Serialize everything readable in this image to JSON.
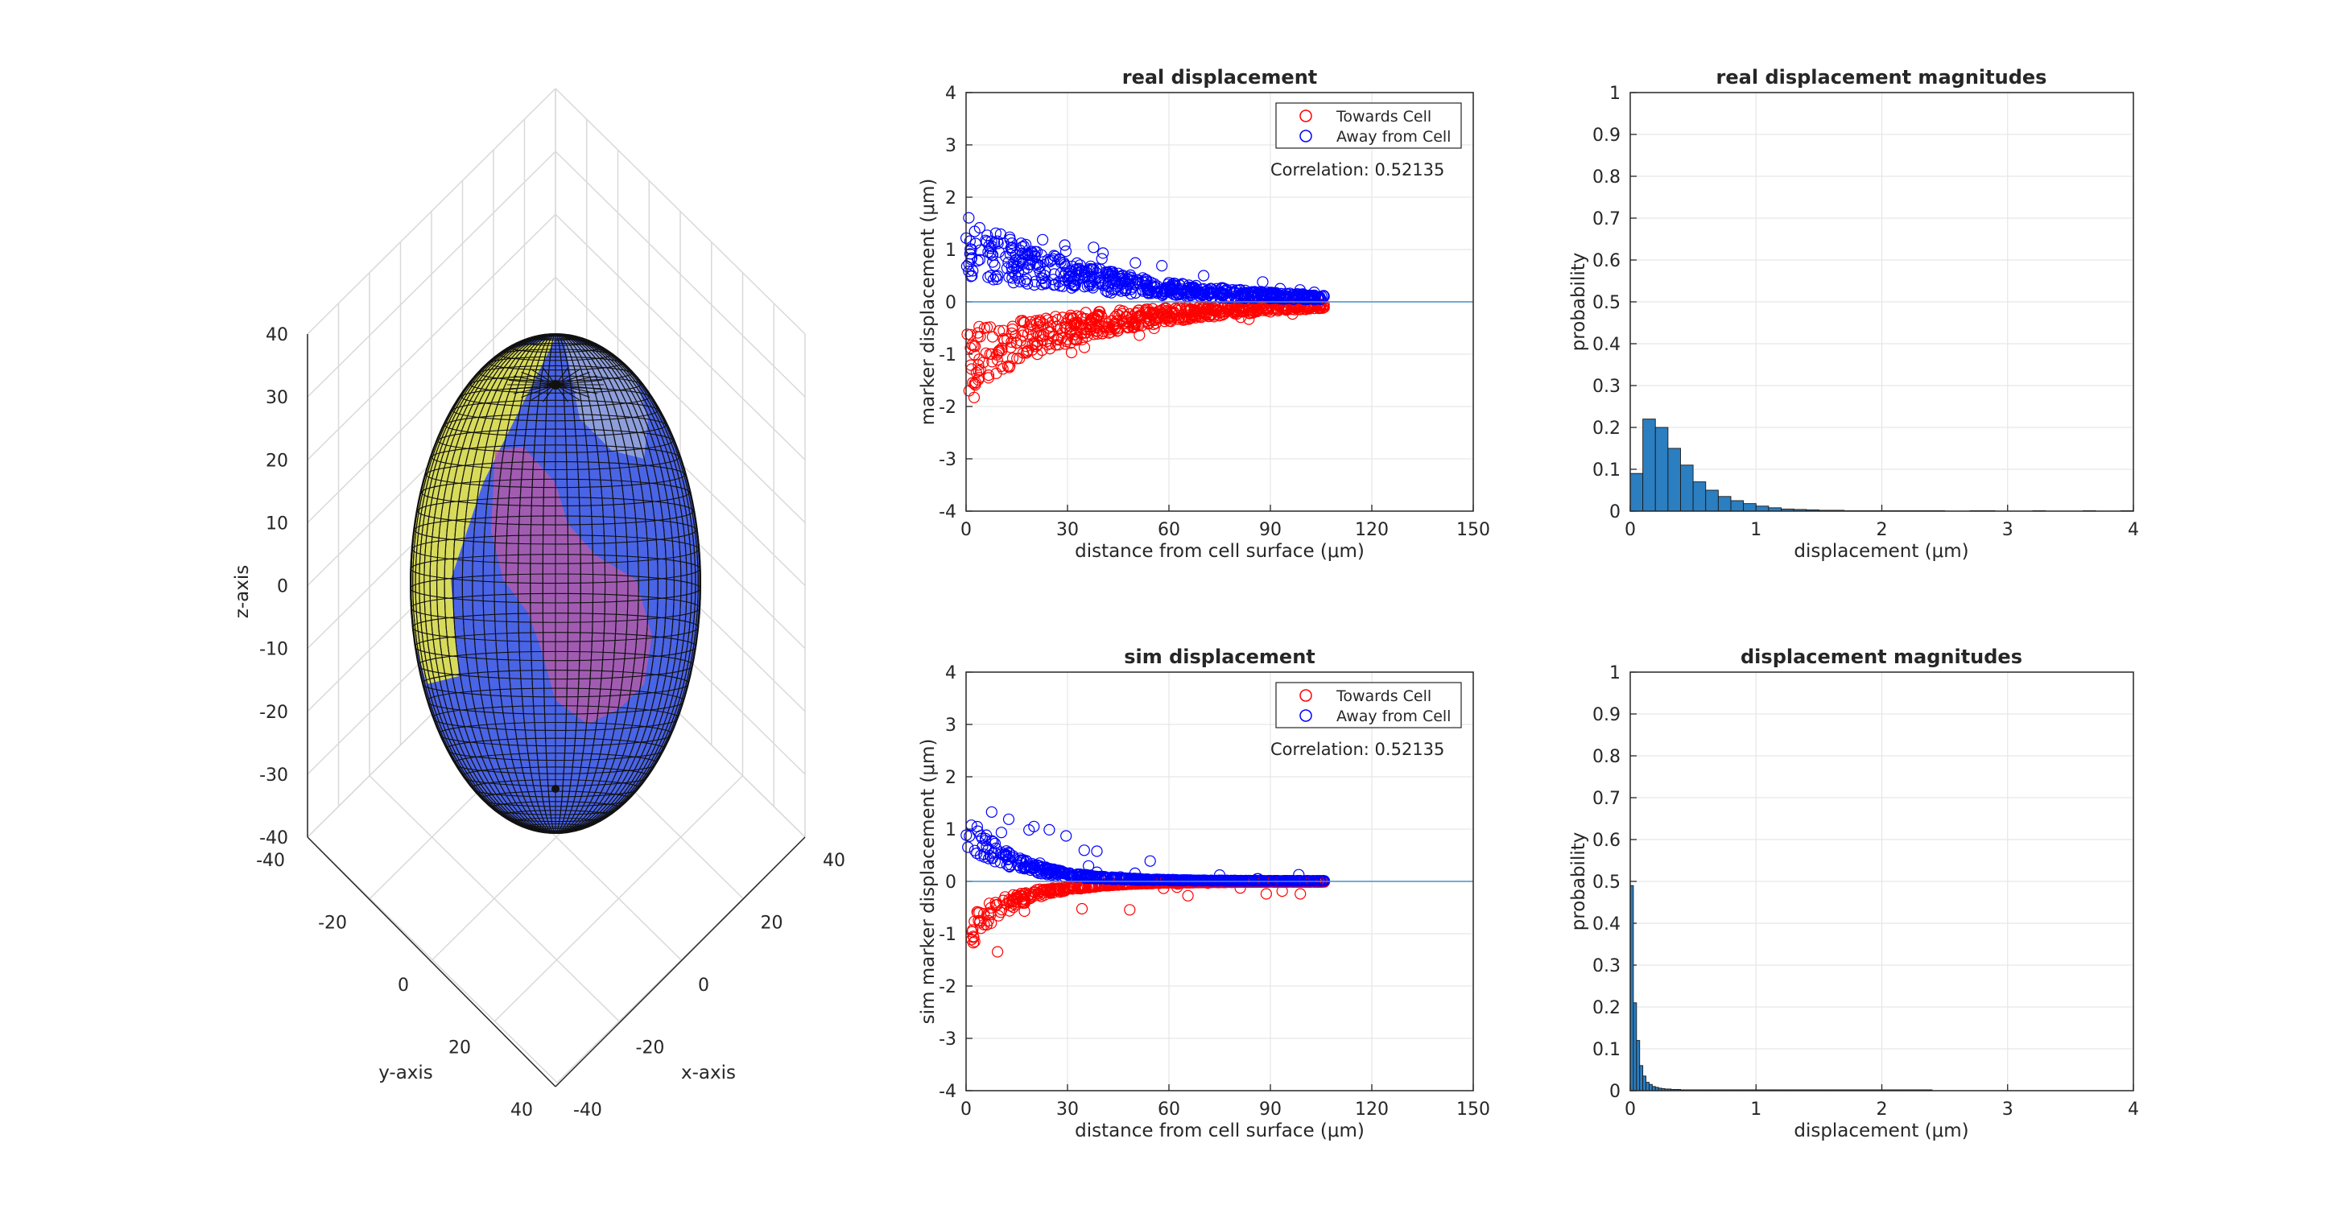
{
  "figure": {
    "background": "#ffffff"
  },
  "chart_data": [
    {
      "id": "3d",
      "type": "surface3d",
      "xlabel": "x-axis",
      "ylabel": "y-axis",
      "zlabel": "z-axis",
      "xticks": [
        "-40",
        "-20",
        "0",
        "20",
        "40"
      ],
      "yticks": [
        "-40",
        "-20",
        "0",
        "20",
        "40"
      ],
      "zticks": [
        "40",
        "30",
        "20",
        "10",
        "0",
        "-10",
        "-20",
        "-30",
        "-40"
      ],
      "surfaces": [
        {
          "name": "cell ellipsoid",
          "color": "#4a64e6"
        },
        {
          "name": "yellow patch",
          "color": "#e8e84a"
        },
        {
          "name": "pink region",
          "color": "#b05aa8"
        }
      ]
    },
    {
      "id": "real",
      "type": "scatter",
      "title": "real displacement",
      "xlabel": "distance from cell surface (μm)",
      "ylabel": "marker displacement (μm)",
      "xlim": [
        0,
        150
      ],
      "ylim": [
        -4,
        4
      ],
      "xticks": [
        "0",
        "30",
        "60",
        "90",
        "120",
        "150"
      ],
      "yticks": [
        "4",
        "3",
        "2",
        "1",
        "0",
        "-1",
        "-2",
        "-3",
        "-4"
      ],
      "annotation": "Correlation: 0.52135",
      "series": [
        {
          "name": "Towards Cell",
          "color": "#ff0000"
        },
        {
          "name": "Away from Cell",
          "color": "#0000ff"
        }
      ],
      "reference_line": {
        "y": 0,
        "color": "#4a90c8"
      },
      "model": {
        "n": 600,
        "max_x": 106,
        "mean_amp": 1.0,
        "decay": 35,
        "spread": 0.55,
        "floor": 0.12
      }
    },
    {
      "id": "realhist",
      "type": "bar",
      "title": "real displacement magnitudes",
      "xlabel": "displacement (μm)",
      "ylabel": "probability",
      "xlim": [
        0,
        4
      ],
      "ylim": [
        0,
        1
      ],
      "xticks": [
        "0",
        "1",
        "2",
        "3",
        "4"
      ],
      "yticks": [
        "1",
        "0.9",
        "0.8",
        "0.7",
        "0.6",
        "0.5",
        "0.4",
        "0.3",
        "0.2",
        "0.1",
        "0"
      ],
      "bin_width": 0.1,
      "values": [
        0.09,
        0.22,
        0.2,
        0.15,
        0.11,
        0.07,
        0.05,
        0.035,
        0.025,
        0.018,
        0.012,
        0.008,
        0.005,
        0.004,
        0.003,
        0.002,
        0.002,
        0.001,
        0.001,
        0.001,
        0.001,
        0.001,
        0.001,
        0.001,
        0.001,
        0,
        0,
        0.001,
        0.001,
        0,
        0,
        0,
        0.001,
        0,
        0,
        0,
        0.001,
        0,
        0,
        0.001
      ],
      "bar_color": "#2b7ec0"
    },
    {
      "id": "sim",
      "type": "scatter",
      "title": "sim displacement",
      "xlabel": "distance from cell surface (μm)",
      "ylabel": "sim marker displacement (μm)",
      "xlim": [
        0,
        150
      ],
      "ylim": [
        -4,
        4
      ],
      "xticks": [
        "0",
        "30",
        "60",
        "90",
        "120",
        "150"
      ],
      "yticks": [
        "4",
        "3",
        "2",
        "1",
        "0",
        "-1",
        "-2",
        "-3",
        "-4"
      ],
      "annotation": "Correlation: 0.52135",
      "series": [
        {
          "name": "Towards Cell",
          "color": "#ff0000"
        },
        {
          "name": "Away from Cell",
          "color": "#0000ff"
        }
      ],
      "reference_line": {
        "y": 0,
        "color": "#4a90c8"
      },
      "model": {
        "n": 600,
        "max_x": 106,
        "mean_amp": 1.0,
        "decay": 14,
        "spread": 0.35,
        "floor": 0.02
      }
    },
    {
      "id": "simhist",
      "type": "bar",
      "title": "displacement magnitudes",
      "xlabel": "displacement (μm)",
      "ylabel": "probability",
      "xlim": [
        0,
        4
      ],
      "ylim": [
        0,
        1
      ],
      "xticks": [
        "0",
        "1",
        "2",
        "3",
        "4"
      ],
      "yticks": [
        "1",
        "0.9",
        "0.8",
        "0.7",
        "0.6",
        "0.5",
        "0.4",
        "0.3",
        "0.2",
        "0.1",
        "0"
      ],
      "bin_width": 0.025,
      "values": [
        0.49,
        0.21,
        0.12,
        0.06,
        0.035,
        0.02,
        0.015,
        0.01,
        0.008,
        0.006,
        0.005,
        0.004,
        0.004,
        0.003,
        0.003,
        0.003,
        0.002,
        0.002,
        0.002,
        0.002,
        0.002,
        0.002,
        0.002,
        0.002,
        0.002,
        0.002,
        0.002,
        0.002,
        0.002,
        0.002,
        0.002,
        0.002,
        0.002,
        0.002,
        0.002,
        0.002,
        0.002,
        0.002,
        0.002,
        0.002,
        0.002,
        0.002,
        0.002,
        0.002,
        0.002,
        0.002,
        0.002,
        0.002,
        0.002,
        0.002,
        0.002,
        0.002,
        0.002,
        0.002,
        0.002,
        0.002,
        0.002,
        0.002,
        0.002,
        0.002,
        0.002,
        0.002,
        0.002,
        0.002,
        0.002,
        0.002,
        0.002,
        0.002,
        0.002,
        0.002,
        0.002,
        0.002,
        0.002,
        0.002,
        0.002,
        0.002,
        0.002,
        0.002,
        0.002,
        0.002,
        0.002,
        0.002,
        0.002,
        0.002,
        0.002,
        0.002,
        0.002,
        0.002,
        0.002,
        0.002,
        0.002,
        0.002,
        0.002,
        0.002,
        0.002,
        0.002
      ],
      "bar_color": "#2b7ec0"
    }
  ]
}
